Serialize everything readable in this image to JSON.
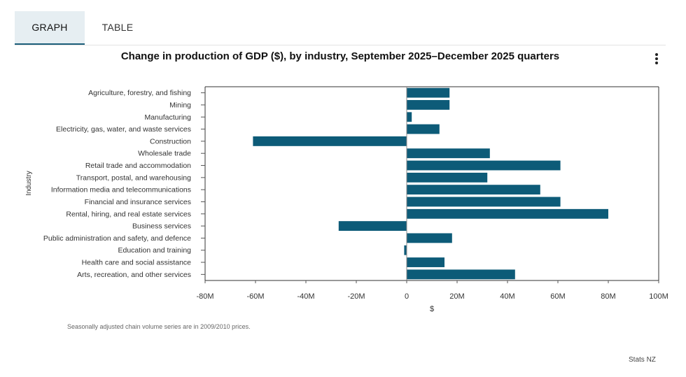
{
  "tabs": {
    "graph": "GRAPH",
    "table": "TABLE"
  },
  "menu": {
    "icon": "kebab-menu-icon"
  },
  "footnote": "Seasonally adjusted chain volume series are in 2009/2010 prices.",
  "credits": "Stats NZ",
  "colors": {
    "bar": "#0d5b78",
    "axis": "#333333",
    "active_tab": "#e6eef2",
    "tab_underline": "#1b5e7a"
  },
  "chart_data": {
    "type": "bar",
    "orientation": "horizontal",
    "title": "Change in production of GDP ($), by industry, September 2025–December 2025 quarters",
    "xlabel": "$",
    "ylabel": "Industry",
    "xlim": [
      -80,
      100
    ],
    "x_ticks": [
      -80,
      -60,
      -40,
      -20,
      0,
      20,
      40,
      60,
      80,
      100
    ],
    "x_tick_labels": [
      "-80M",
      "-60M",
      "-40M",
      "-20M",
      "0",
      "20M",
      "40M",
      "60M",
      "80M",
      "100M"
    ],
    "categories": [
      "Agriculture, forestry, and fishing",
      "Mining",
      "Manufacturing",
      "Electricity, gas, water, and waste services",
      "Construction",
      "Wholesale trade",
      "Retail trade and accommodation",
      "Transport, postal, and warehousing",
      "Information media and telecommunications",
      "Financial and insurance services",
      "Rental, hiring, and real estate services",
      "Business services",
      "Public administration and safety, and defence",
      "Education and training",
      "Health care and social assistance",
      "Arts, recreation, and other services"
    ],
    "values": [
      17,
      17,
      2,
      13,
      -61,
      33,
      61,
      32,
      53,
      61,
      80,
      -27,
      18,
      -1,
      15,
      43
    ],
    "units": "M"
  }
}
